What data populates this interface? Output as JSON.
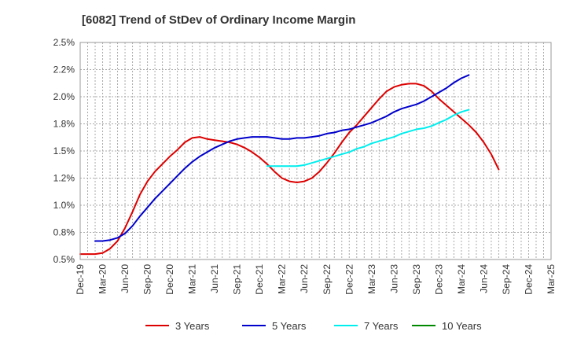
{
  "chart_data": {
    "type": "line",
    "title": "[6082]  Trend of StDev of Ordinary Income Margin",
    "xlabel": "",
    "ylabel": "",
    "x_tick_labels": [
      "Dec-19",
      "Mar-20",
      "Jun-20",
      "Sep-20",
      "Dec-20",
      "Mar-21",
      "Jun-21",
      "Sep-21",
      "Dec-21",
      "Mar-22",
      "Jun-22",
      "Sep-22",
      "Dec-22",
      "Mar-23",
      "Jun-23",
      "Sep-23",
      "Dec-23",
      "Mar-24",
      "Jun-24",
      "Sep-24",
      "Dec-24",
      "Mar-25"
    ],
    "y_tick_labels": [
      "0.5%",
      "0.8%",
      "1.0%",
      "1.2%",
      "1.5%",
      "1.8%",
      "2.0%",
      "2.2%",
      "2.5%"
    ],
    "ylim": [
      0.5,
      2.5
    ],
    "grid": true,
    "legend_position": "bottom",
    "series": [
      {
        "name": "3 Years",
        "color": "#dd0000",
        "points": [
          [
            0,
            0.55
          ],
          [
            1,
            0.55
          ],
          [
            2,
            0.55
          ],
          [
            3,
            0.56
          ],
          [
            4,
            0.6
          ],
          [
            5,
            0.67
          ],
          [
            6,
            0.79
          ],
          [
            7,
            0.94
          ],
          [
            8,
            1.1
          ],
          [
            9,
            1.22
          ],
          [
            10,
            1.31
          ],
          [
            11,
            1.38
          ],
          [
            12,
            1.45
          ],
          [
            13,
            1.51
          ],
          [
            14,
            1.58
          ],
          [
            15,
            1.62
          ],
          [
            16,
            1.63
          ],
          [
            17,
            1.61
          ],
          [
            18,
            1.6
          ],
          [
            19,
            1.59
          ],
          [
            20,
            1.58
          ],
          [
            21,
            1.56
          ],
          [
            22,
            1.53
          ],
          [
            23,
            1.49
          ],
          [
            24,
            1.44
          ],
          [
            25,
            1.38
          ],
          [
            26,
            1.31
          ],
          [
            27,
            1.25
          ],
          [
            28,
            1.22
          ],
          [
            29,
            1.21
          ],
          [
            30,
            1.22
          ],
          [
            31,
            1.25
          ],
          [
            32,
            1.31
          ],
          [
            33,
            1.39
          ],
          [
            34,
            1.48
          ],
          [
            35,
            1.58
          ],
          [
            36,
            1.67
          ],
          [
            37,
            1.74
          ],
          [
            38,
            1.82
          ],
          [
            39,
            1.9
          ],
          [
            40,
            1.98
          ],
          [
            41,
            2.05
          ],
          [
            42,
            2.09
          ],
          [
            43,
            2.11
          ],
          [
            44,
            2.12
          ],
          [
            45,
            2.12
          ],
          [
            46,
            2.1
          ],
          [
            47,
            2.05
          ],
          [
            48,
            1.98
          ],
          [
            49,
            1.92
          ],
          [
            50,
            1.86
          ],
          [
            51,
            1.8
          ],
          [
            52,
            1.74
          ],
          [
            53,
            1.67
          ],
          [
            54,
            1.58
          ],
          [
            55,
            1.47
          ],
          [
            56,
            1.33
          ]
        ]
      },
      {
        "name": "5 Years",
        "color": "#0000cc",
        "points": [
          [
            2,
            0.67
          ],
          [
            3,
            0.67
          ],
          [
            4,
            0.68
          ],
          [
            5,
            0.7
          ],
          [
            6,
            0.74
          ],
          [
            7,
            0.81
          ],
          [
            8,
            0.9
          ],
          [
            9,
            0.98
          ],
          [
            10,
            1.06
          ],
          [
            11,
            1.13
          ],
          [
            12,
            1.2
          ],
          [
            13,
            1.27
          ],
          [
            14,
            1.34
          ],
          [
            15,
            1.4
          ],
          [
            16,
            1.45
          ],
          [
            17,
            1.49
          ],
          [
            18,
            1.53
          ],
          [
            19,
            1.56
          ],
          [
            20,
            1.59
          ],
          [
            21,
            1.61
          ],
          [
            22,
            1.62
          ],
          [
            23,
            1.63
          ],
          [
            24,
            1.63
          ],
          [
            25,
            1.63
          ],
          [
            26,
            1.62
          ],
          [
            27,
            1.61
          ],
          [
            28,
            1.61
          ],
          [
            29,
            1.62
          ],
          [
            30,
            1.62
          ],
          [
            31,
            1.63
          ],
          [
            32,
            1.64
          ],
          [
            33,
            1.66
          ],
          [
            34,
            1.67
          ],
          [
            35,
            1.69
          ],
          [
            36,
            1.7
          ],
          [
            37,
            1.72
          ],
          [
            38,
            1.74
          ],
          [
            39,
            1.76
          ],
          [
            40,
            1.79
          ],
          [
            41,
            1.82
          ],
          [
            42,
            1.86
          ],
          [
            43,
            1.89
          ],
          [
            44,
            1.91
          ],
          [
            45,
            1.93
          ],
          [
            46,
            1.96
          ],
          [
            47,
            2.0
          ],
          [
            48,
            2.04
          ],
          [
            49,
            2.08
          ],
          [
            50,
            2.13
          ],
          [
            51,
            2.17
          ],
          [
            52,
            2.2
          ]
        ]
      },
      {
        "name": "7 Years",
        "color": "#00eeee",
        "points": [
          [
            25,
            1.36
          ],
          [
            26,
            1.36
          ],
          [
            27,
            1.36
          ],
          [
            28,
            1.36
          ],
          [
            29,
            1.36
          ],
          [
            30,
            1.37
          ],
          [
            31,
            1.39
          ],
          [
            32,
            1.41
          ],
          [
            33,
            1.43
          ],
          [
            34,
            1.45
          ],
          [
            35,
            1.47
          ],
          [
            36,
            1.49
          ],
          [
            37,
            1.52
          ],
          [
            38,
            1.54
          ],
          [
            39,
            1.57
          ],
          [
            40,
            1.59
          ],
          [
            41,
            1.61
          ],
          [
            42,
            1.63
          ],
          [
            43,
            1.66
          ],
          [
            44,
            1.68
          ],
          [
            45,
            1.7
          ],
          [
            46,
            1.71
          ],
          [
            47,
            1.73
          ],
          [
            48,
            1.76
          ],
          [
            49,
            1.79
          ],
          [
            50,
            1.83
          ],
          [
            51,
            1.86
          ],
          [
            52,
            1.88
          ]
        ]
      },
      {
        "name": "10 Years",
        "color": "#008800",
        "points": []
      }
    ]
  }
}
